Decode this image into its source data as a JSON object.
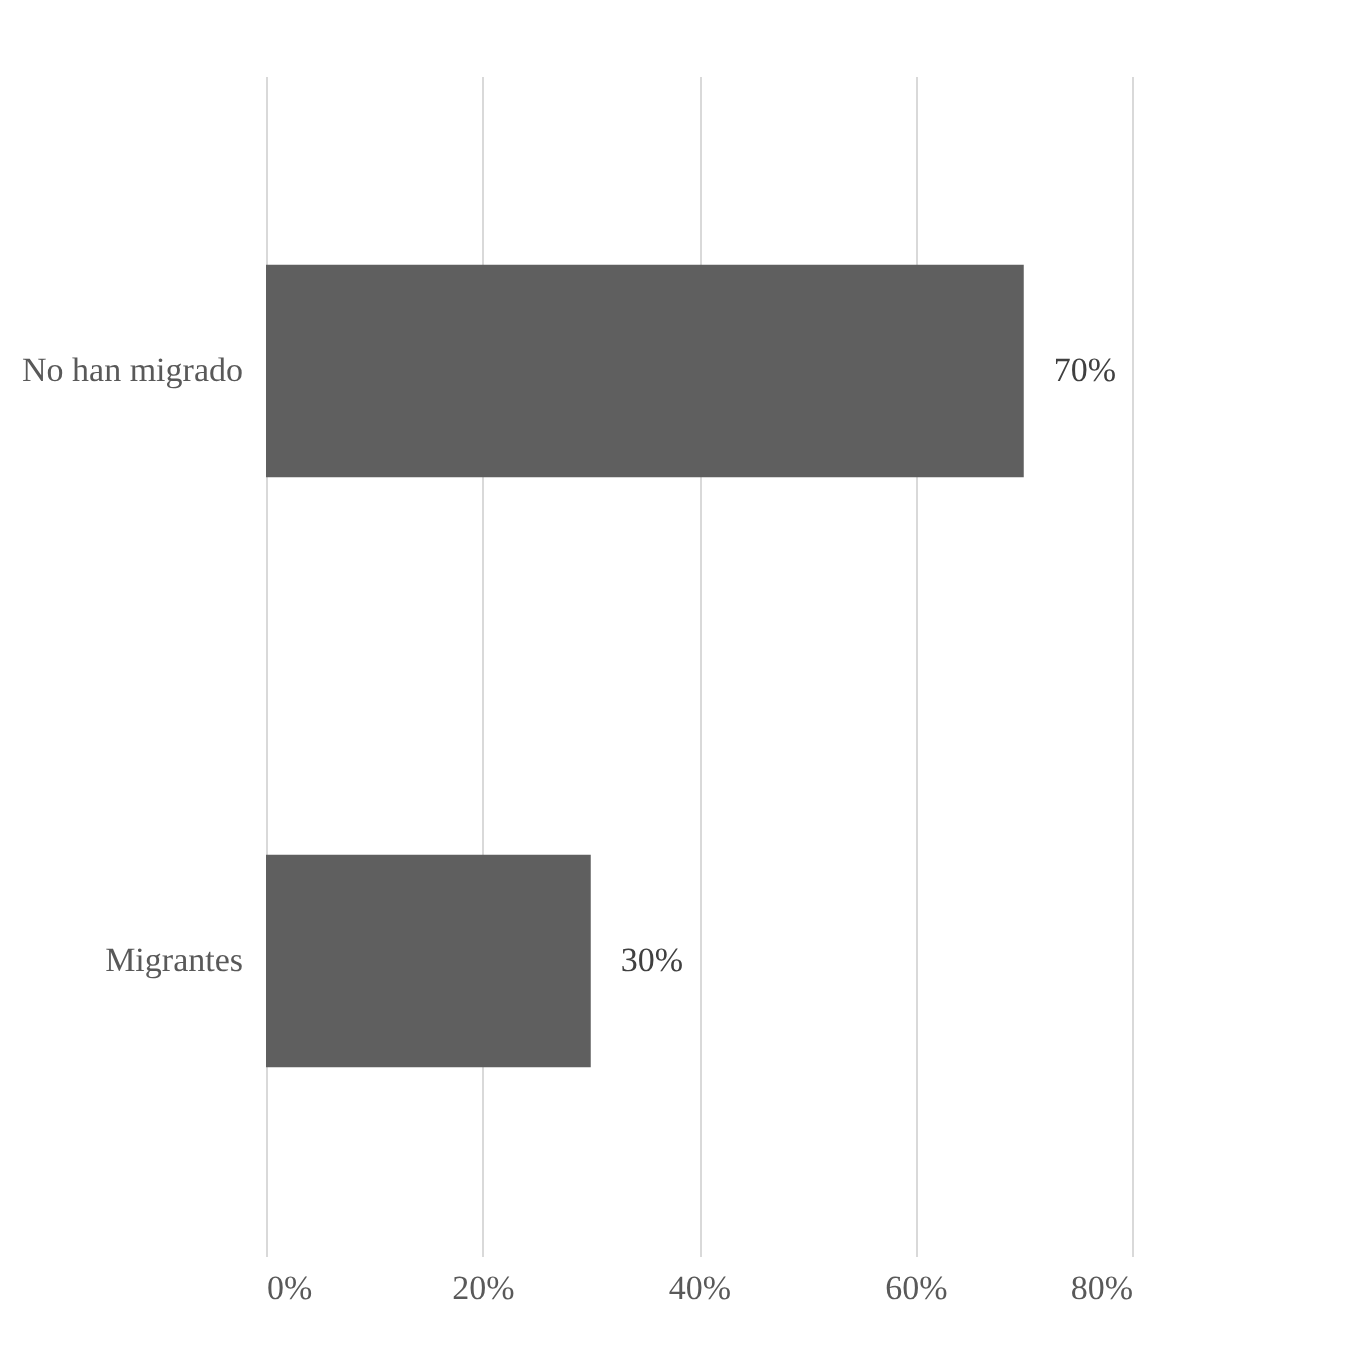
{
  "chart_data": {
    "type": "bar",
    "orientation": "horizontal",
    "categories": [
      "No han migrado",
      "Migrantes"
    ],
    "values": [
      70,
      30
    ],
    "color": "#5f5f5f",
    "value_labels": [
      "70%",
      "30%"
    ],
    "xlim": [
      0,
      80
    ],
    "xticks": [
      {
        "value": 0,
        "label": "0%"
      },
      {
        "value": 20,
        "label": "20%"
      },
      {
        "value": 40,
        "label": "40%"
      },
      {
        "value": 60,
        "label": "60%"
      },
      {
        "value": 80,
        "label": "80%"
      }
    ],
    "grid": "x"
  }
}
